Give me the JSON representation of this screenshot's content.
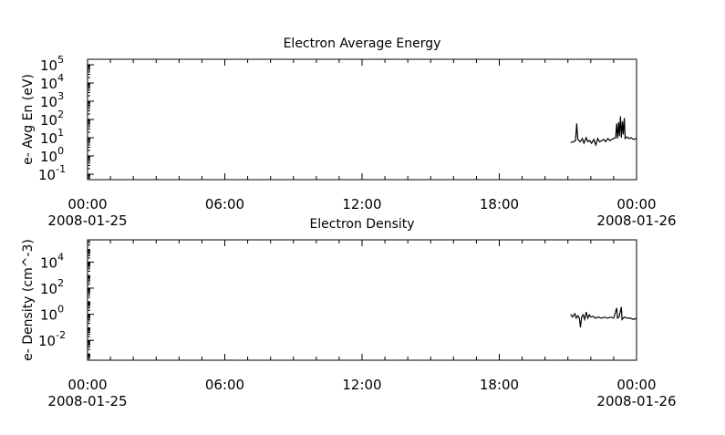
{
  "chart_data": [
    {
      "type": "line",
      "title": "Electron Average Energy",
      "ylabel": "e- Avg En (eV)",
      "yscale": "log",
      "ylim": [
        0.05,
        200000
      ],
      "yticks": [
        {
          "value": 100000,
          "base": "10",
          "exp": "5"
        },
        {
          "value": 10000,
          "base": "10",
          "exp": "4"
        },
        {
          "value": 1000,
          "base": "10",
          "exp": "3"
        },
        {
          "value": 100,
          "base": "10",
          "exp": "2"
        },
        {
          "value": 10,
          "base": "10",
          "exp": "1"
        },
        {
          "value": 1,
          "base": "10",
          "exp": "0"
        },
        {
          "value": 0.1,
          "base": "10",
          "exp": "-1"
        }
      ],
      "xlim": [
        "2008-01-25T00:00",
        "2008-01-26T00:00"
      ],
      "xticks": [
        {
          "x": "2008-01-25T00:00",
          "label": "00:00",
          "sub": "2008-01-25"
        },
        {
          "x": "2008-01-25T06:00",
          "label": "06:00",
          "sub": ""
        },
        {
          "x": "2008-01-25T12:00",
          "label": "12:00",
          "sub": ""
        },
        {
          "x": "2008-01-25T18:00",
          "label": "18:00",
          "sub": ""
        },
        {
          "x": "2008-01-26T00:00",
          "label": "00:00",
          "sub": "2008-01-26"
        }
      ],
      "series": [
        {
          "color": "#000000",
          "points": [
            [
              "2008-01-25T21:07",
              5.5
            ],
            [
              "2008-01-25T21:15",
              6
            ],
            [
              "2008-01-25T21:20",
              7
            ],
            [
              "2008-01-25T21:23",
              60
            ],
            [
              "2008-01-25T21:26",
              8
            ],
            [
              "2008-01-25T21:32",
              6
            ],
            [
              "2008-01-25T21:38",
              9
            ],
            [
              "2008-01-25T21:42",
              5
            ],
            [
              "2008-01-25T21:48",
              10
            ],
            [
              "2008-01-25T21:52",
              6
            ],
            [
              "2008-01-25T21:57",
              7
            ],
            [
              "2008-01-25T22:02",
              5
            ],
            [
              "2008-01-25T22:08",
              8
            ],
            [
              "2008-01-25T22:13",
              4
            ],
            [
              "2008-01-25T22:18",
              9
            ],
            [
              "2008-01-25T22:23",
              6
            ],
            [
              "2008-01-25T22:29",
              7
            ],
            [
              "2008-01-25T22:34",
              8
            ],
            [
              "2008-01-25T22:39",
              6
            ],
            [
              "2008-01-25T22:45",
              9
            ],
            [
              "2008-01-25T22:50",
              7
            ],
            [
              "2008-01-25T22:55",
              8
            ],
            [
              "2008-01-25T23:00",
              9
            ],
            [
              "2008-01-25T23:05",
              10
            ],
            [
              "2008-01-25T23:08",
              60
            ],
            [
              "2008-01-25T23:10",
              9
            ],
            [
              "2008-01-25T23:13",
              70
            ],
            [
              "2008-01-25T23:15",
              12
            ],
            [
              "2008-01-25T23:18",
              150
            ],
            [
              "2008-01-25T23:20",
              10
            ],
            [
              "2008-01-25T23:23",
              80
            ],
            [
              "2008-01-25T23:25",
              15
            ],
            [
              "2008-01-25T23:28",
              120
            ],
            [
              "2008-01-25T23:30",
              9
            ],
            [
              "2008-01-25T23:35",
              11
            ],
            [
              "2008-01-25T23:40",
              9
            ],
            [
              "2008-01-25T23:46",
              10
            ],
            [
              "2008-01-25T23:52",
              8
            ],
            [
              "2008-01-26T00:00",
              9
            ]
          ]
        }
      ]
    },
    {
      "type": "line",
      "title": "Electron Density",
      "ylabel": "e- Density (cm^-3)",
      "yscale": "log",
      "ylim": [
        0.0003,
        500000
      ],
      "yticks": [
        {
          "value": 10000,
          "base": "10",
          "exp": "4"
        },
        {
          "value": 100,
          "base": "10",
          "exp": "2"
        },
        {
          "value": 1,
          "base": "10",
          "exp": "0"
        },
        {
          "value": 0.01,
          "base": "10",
          "exp": "-2"
        }
      ],
      "xlim": [
        "2008-01-25T00:00",
        "2008-01-26T00:00"
      ],
      "xticks": [
        {
          "x": "2008-01-25T00:00",
          "label": "00:00",
          "sub": "2008-01-25"
        },
        {
          "x": "2008-01-25T06:00",
          "label": "06:00",
          "sub": ""
        },
        {
          "x": "2008-01-25T12:00",
          "label": "12:00",
          "sub": ""
        },
        {
          "x": "2008-01-25T18:00",
          "label": "18:00",
          "sub": ""
        },
        {
          "x": "2008-01-26T00:00",
          "label": "00:00",
          "sub": "2008-01-26"
        }
      ],
      "series": [
        {
          "color": "#000000",
          "points": [
            [
              "2008-01-25T21:07",
              1.0
            ],
            [
              "2008-01-25T21:12",
              0.6
            ],
            [
              "2008-01-25T21:18",
              1.1
            ],
            [
              "2008-01-25T21:22",
              0.5
            ],
            [
              "2008-01-25T21:26",
              0.8
            ],
            [
              "2008-01-25T21:30",
              0.5
            ],
            [
              "2008-01-25T21:33",
              0.1
            ],
            [
              "2008-01-25T21:36",
              0.6
            ],
            [
              "2008-01-25T21:40",
              0.9
            ],
            [
              "2008-01-25T21:44",
              0.4
            ],
            [
              "2008-01-25T21:48",
              1.5
            ],
            [
              "2008-01-25T21:52",
              0.5
            ],
            [
              "2008-01-25T21:56",
              0.9
            ],
            [
              "2008-01-25T22:00",
              0.6
            ],
            [
              "2008-01-25T22:06",
              0.7
            ],
            [
              "2008-01-25T22:12",
              0.5
            ],
            [
              "2008-01-25T22:20",
              0.6
            ],
            [
              "2008-01-25T22:28",
              0.5
            ],
            [
              "2008-01-25T22:36",
              0.6
            ],
            [
              "2008-01-25T22:44",
              0.5
            ],
            [
              "2008-01-25T22:52",
              0.6
            ],
            [
              "2008-01-25T23:00",
              0.5
            ],
            [
              "2008-01-25T23:08",
              3
            ],
            [
              "2008-01-25T23:10",
              0.5
            ],
            [
              "2008-01-25T23:14",
              0.6
            ],
            [
              "2008-01-25T23:20",
              3.5
            ],
            [
              "2008-01-25T23:22",
              0.4
            ],
            [
              "2008-01-25T23:28",
              0.6
            ],
            [
              "2008-01-25T23:36",
              0.5
            ],
            [
              "2008-01-25T23:44",
              0.5
            ],
            [
              "2008-01-25T23:52",
              0.4
            ],
            [
              "2008-01-26T00:00",
              0.5
            ]
          ]
        }
      ]
    }
  ]
}
